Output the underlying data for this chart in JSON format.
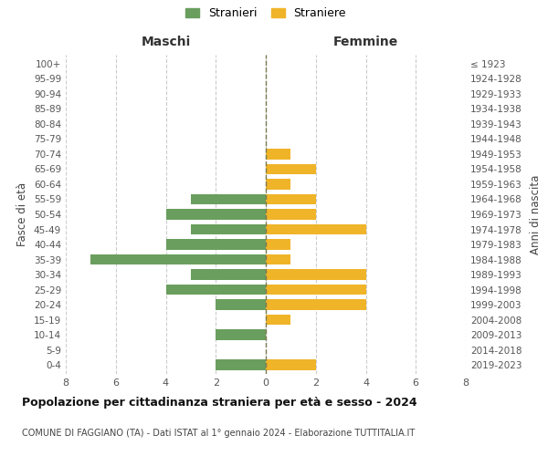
{
  "age_groups": [
    "0-4",
    "5-9",
    "10-14",
    "15-19",
    "20-24",
    "25-29",
    "30-34",
    "35-39",
    "40-44",
    "45-49",
    "50-54",
    "55-59",
    "60-64",
    "65-69",
    "70-74",
    "75-79",
    "80-84",
    "85-89",
    "90-94",
    "95-99",
    "100+"
  ],
  "birth_years": [
    "2019-2023",
    "2014-2018",
    "2009-2013",
    "2004-2008",
    "1999-2003",
    "1994-1998",
    "1989-1993",
    "1984-1988",
    "1979-1983",
    "1974-1978",
    "1969-1973",
    "1964-1968",
    "1959-1963",
    "1954-1958",
    "1949-1953",
    "1944-1948",
    "1939-1943",
    "1934-1938",
    "1929-1933",
    "1924-1928",
    "≤ 1923"
  ],
  "maschi": [
    2,
    0,
    2,
    0,
    2,
    4,
    3,
    7,
    4,
    3,
    4,
    3,
    0,
    0,
    0,
    0,
    0,
    0,
    0,
    0,
    0
  ],
  "femmine": [
    2,
    0,
    0,
    1,
    4,
    4,
    4,
    1,
    1,
    4,
    2,
    2,
    1,
    2,
    1,
    0,
    0,
    0,
    0,
    0,
    0
  ],
  "male_color": "#6a9e5e",
  "female_color": "#f0b429",
  "grid_color": "#cccccc",
  "center_line_color": "#7a7a50",
  "title": "Popolazione per cittadinanza straniera per età e sesso - 2024",
  "subtitle": "COMUNE DI FAGGIANO (TA) - Dati ISTAT al 1° gennaio 2024 - Elaborazione TUTTITALIA.IT",
  "xlabel_left": "Maschi",
  "xlabel_right": "Femmine",
  "ylabel_left": "Fasce di età",
  "ylabel_right": "Anni di nascita",
  "legend_male": "Stranieri",
  "legend_female": "Straniere",
  "xlim": 8,
  "bar_height": 0.7
}
